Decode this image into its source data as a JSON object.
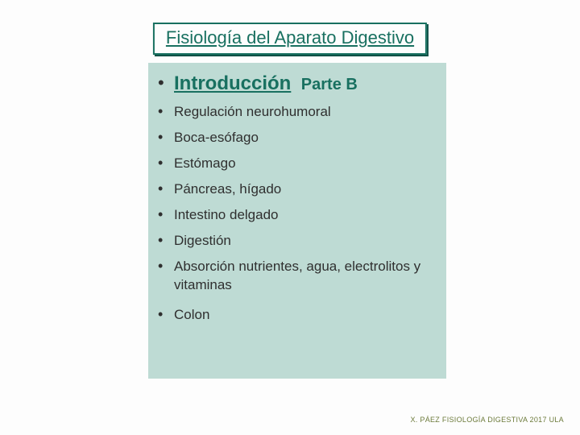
{
  "colors": {
    "page_bg": "#fdfdfd",
    "title_border": "#187060",
    "title_shadow": "#0e5046",
    "title_text": "#187060",
    "panel_bg": "#bedbd4",
    "bullet_color": "#2f2f2f",
    "lead_text": "#187060",
    "lead_suffix": "#187060",
    "item_text": "#2f2f2f",
    "footer_text": "#6c7a3a"
  },
  "title": "Fisiología del Aparato Digestivo",
  "lead": {
    "main": "Introducción",
    "suffix": "Parte B"
  },
  "items": [
    "Regulación neurohumoral",
    "Boca-esófago",
    "Estómago",
    "Páncreas, hígado",
    "Intestino delgado",
    "Digestión",
    "Absorción nutrientes, agua, electrolitos y vitaminas"
  ],
  "trailing_item": "Colon",
  "footer": "X. PÁEZ   FISIOLOGÍA DIGESTIVA 2017   ULA",
  "bullet_glyph": "•"
}
